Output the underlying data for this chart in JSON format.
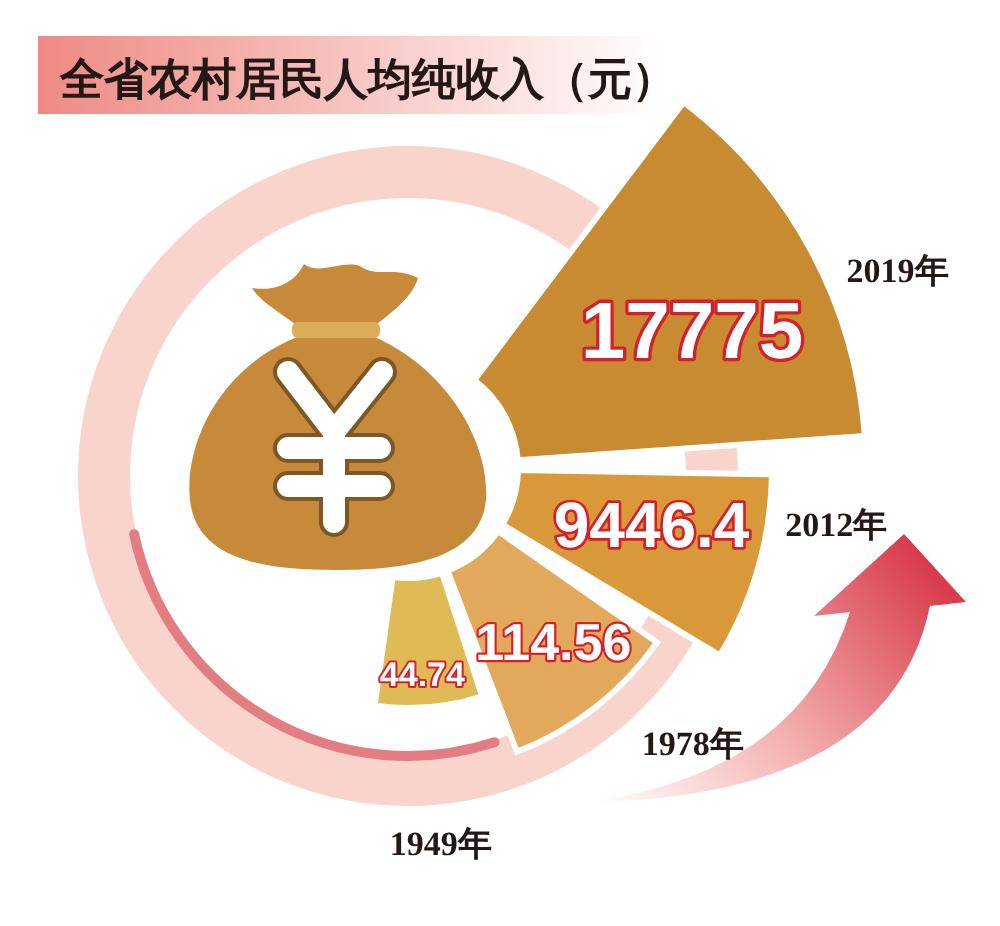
{
  "chart_data": {
    "type": "other",
    "title": "全省农村居民人均纯收入（元）",
    "categories": [
      "1949年",
      "1978年",
      "2012年",
      "2019年"
    ],
    "values": [
      44.74,
      114.56,
      9446.4,
      17775
    ],
    "colors": [
      "#dfba55",
      "#e2a95c",
      "#d9993b",
      "#c98b32"
    ],
    "data_labels": true
  }
}
